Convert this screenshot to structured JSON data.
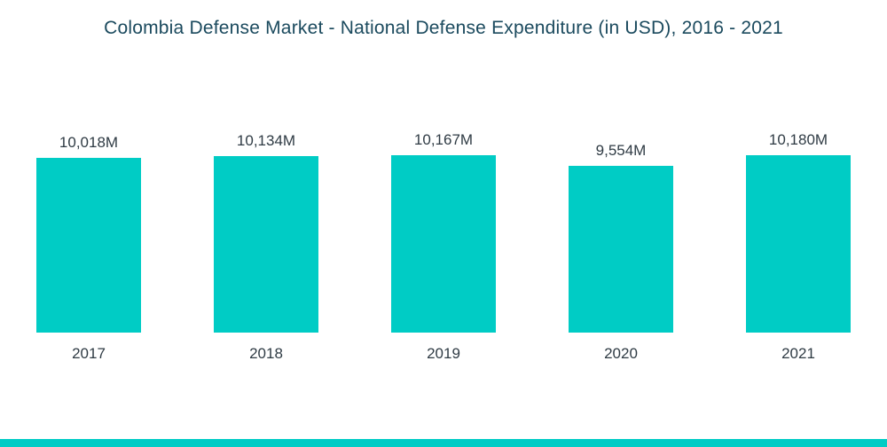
{
  "title": "Colombia Defense Market - National Defense Expenditure (in USD), 2016 - 2021",
  "colors": {
    "bar": "#00CCC5",
    "title_text": "#1b4a5e",
    "label_text": "#2f3b44",
    "footer_stripe": "#00CCC5"
  },
  "chart_data": {
    "type": "bar",
    "title": "Colombia Defense Market - National Defense Expenditure (in USD), 2016 - 2021",
    "categories": [
      "2017",
      "2018",
      "2019",
      "2020",
      "2021"
    ],
    "values": [
      10018,
      10134,
      10167,
      9554,
      10180
    ],
    "value_labels": [
      "10,018M",
      "10,134M",
      "10,167M",
      "9,554M",
      "10,180M"
    ],
    "xlabel": "",
    "ylabel": "",
    "ylim": [
      0,
      10180
    ],
    "grid": false,
    "legend": false,
    "bar_color": "#00CCC5"
  }
}
